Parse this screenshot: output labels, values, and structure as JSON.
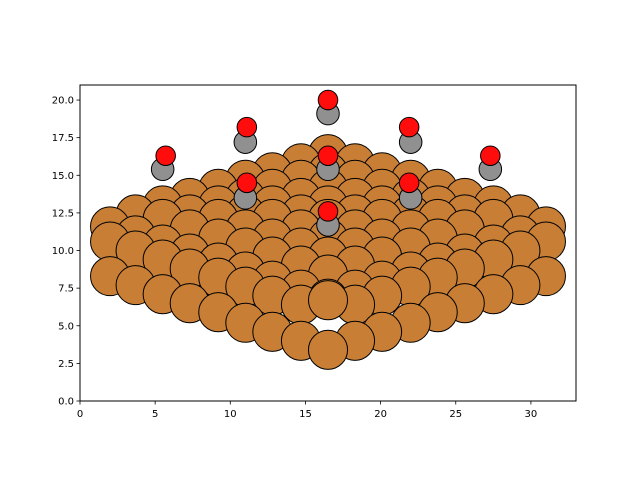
{
  "chart_data": {
    "type": "scatter",
    "title": "",
    "xlabel": "",
    "ylabel": "",
    "xlim": [
      0,
      33
    ],
    "ylim": [
      0,
      21
    ],
    "x_ticks": [
      0,
      5,
      10,
      15,
      20,
      25,
      30
    ],
    "x_tick_labels": [
      "0",
      "5",
      "10",
      "15",
      "20",
      "25",
      "30"
    ],
    "y_ticks": [
      0.0,
      2.5,
      5.0,
      7.5,
      10.0,
      12.5,
      15.0,
      17.5,
      20.0
    ],
    "y_tick_labels": [
      "0.0",
      "2.5",
      "5.0",
      "7.5",
      "10.0",
      "12.5",
      "15.0",
      "17.5",
      "20.0"
    ],
    "grid": false,
    "colors": {
      "cu": "#c87f35",
      "c": "#909090",
      "o": "#ff0d0d",
      "edge": "#000000"
    },
    "series": [
      {
        "element": "Cu",
        "color": "#c87f35",
        "radius": 1.3,
        "points": [
          [
            16.5,
            16.4
          ],
          [
            14.7,
            15.8
          ],
          [
            18.3,
            15.8
          ],
          [
            12.8,
            15.2
          ],
          [
            16.5,
            15.2
          ],
          [
            20.1,
            15.2
          ],
          [
            11.0,
            14.7
          ],
          [
            14.7,
            14.7
          ],
          [
            18.3,
            14.7
          ],
          [
            22.0,
            14.7
          ],
          [
            9.2,
            14.1
          ],
          [
            12.8,
            14.1
          ],
          [
            16.5,
            14.1
          ],
          [
            20.1,
            14.1
          ],
          [
            23.8,
            14.1
          ],
          [
            7.3,
            13.5
          ],
          [
            11.0,
            13.5
          ],
          [
            14.7,
            13.5
          ],
          [
            18.3,
            13.5
          ],
          [
            22.0,
            13.5
          ],
          [
            25.6,
            13.5
          ],
          [
            5.5,
            13.0
          ],
          [
            9.2,
            13.0
          ],
          [
            12.8,
            13.0
          ],
          [
            16.5,
            13.0
          ],
          [
            20.1,
            13.0
          ],
          [
            23.8,
            13.0
          ],
          [
            27.5,
            13.0
          ],
          [
            3.7,
            12.4
          ],
          [
            7.3,
            12.4
          ],
          [
            11.0,
            12.4
          ],
          [
            14.7,
            12.4
          ],
          [
            18.3,
            12.4
          ],
          [
            22.0,
            12.4
          ],
          [
            25.6,
            12.4
          ],
          [
            29.3,
            12.4
          ],
          [
            5.5,
            12.1
          ],
          [
            9.2,
            12.1
          ],
          [
            12.8,
            12.1
          ],
          [
            16.5,
            12.1
          ],
          [
            20.1,
            12.1
          ],
          [
            23.8,
            12.1
          ],
          [
            27.5,
            12.1
          ],
          [
            2.0,
            11.6
          ],
          [
            31.0,
            11.6
          ],
          [
            7.3,
            11.4
          ],
          [
            11.0,
            11.4
          ],
          [
            14.7,
            11.4
          ],
          [
            18.3,
            11.4
          ],
          [
            22.0,
            11.4
          ],
          [
            25.6,
            11.4
          ],
          [
            3.7,
            11.0
          ],
          [
            29.3,
            11.0
          ],
          [
            9.2,
            10.8
          ],
          [
            12.8,
            10.8
          ],
          [
            16.5,
            10.8
          ],
          [
            20.1,
            10.8
          ],
          [
            23.8,
            10.8
          ],
          [
            2.0,
            10.6
          ],
          [
            31.0,
            10.6
          ],
          [
            5.5,
            10.4
          ],
          [
            27.5,
            10.4
          ],
          [
            11.0,
            10.2
          ],
          [
            14.7,
            10.2
          ],
          [
            18.3,
            10.2
          ],
          [
            22.0,
            10.2
          ],
          [
            3.7,
            10.0
          ],
          [
            29.3,
            10.0
          ],
          [
            7.3,
            9.8
          ],
          [
            25.6,
            9.8
          ],
          [
            12.8,
            9.6
          ],
          [
            16.5,
            9.6
          ],
          [
            20.1,
            9.6
          ],
          [
            5.5,
            9.4
          ],
          [
            27.5,
            9.4
          ],
          [
            9.2,
            9.2
          ],
          [
            23.8,
            9.2
          ],
          [
            14.7,
            9.0
          ],
          [
            18.3,
            9.0
          ],
          [
            7.3,
            8.8
          ],
          [
            25.6,
            8.8
          ],
          [
            11.0,
            8.6
          ],
          [
            22.0,
            8.6
          ],
          [
            16.5,
            8.4
          ],
          [
            2.0,
            8.3
          ],
          [
            31.0,
            8.3
          ],
          [
            12.8,
            8.0
          ],
          [
            20.1,
            8.0
          ],
          [
            9.2,
            8.2
          ],
          [
            23.8,
            8.2
          ],
          [
            3.7,
            7.7
          ],
          [
            29.3,
            7.7
          ],
          [
            14.7,
            7.4
          ],
          [
            18.3,
            7.4
          ],
          [
            11.0,
            7.6
          ],
          [
            22.0,
            7.6
          ],
          [
            5.5,
            7.1
          ],
          [
            27.5,
            7.1
          ],
          [
            16.5,
            6.8
          ],
          [
            12.8,
            7.0
          ],
          [
            20.1,
            7.0
          ],
          [
            7.3,
            6.5
          ],
          [
            25.6,
            6.5
          ],
          [
            14.7,
            6.4
          ],
          [
            18.3,
            6.4
          ],
          [
            9.2,
            5.9
          ],
          [
            23.8,
            5.9
          ],
          [
            16.5,
            6.7
          ],
          [
            11.0,
            5.2
          ],
          [
            22.0,
            5.2
          ],
          [
            12.8,
            4.6
          ],
          [
            20.1,
            4.6
          ],
          [
            14.7,
            4.0
          ],
          [
            18.3,
            4.0
          ],
          [
            16.5,
            3.4
          ]
        ]
      },
      {
        "element": "C",
        "color": "#909090",
        "radius": 0.75,
        "points": [
          [
            16.5,
            19.1
          ],
          [
            11.0,
            17.2
          ],
          [
            22.0,
            17.2
          ],
          [
            5.5,
            15.4
          ],
          [
            16.5,
            15.4
          ],
          [
            27.3,
            15.4
          ],
          [
            11.0,
            13.5
          ],
          [
            22.0,
            13.5
          ],
          [
            16.5,
            11.7
          ]
        ]
      },
      {
        "element": "O",
        "color": "#ff0d0d",
        "radius": 0.65,
        "points": [
          [
            16.5,
            20.0
          ],
          [
            11.1,
            18.2
          ],
          [
            21.9,
            18.2
          ],
          [
            5.7,
            16.3
          ],
          [
            16.5,
            16.3
          ],
          [
            27.3,
            16.3
          ],
          [
            11.1,
            14.5
          ],
          [
            21.9,
            14.5
          ],
          [
            16.5,
            12.6
          ]
        ]
      }
    ]
  }
}
